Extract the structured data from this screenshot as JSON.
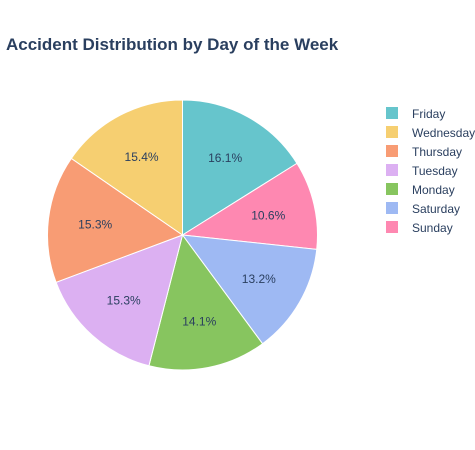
{
  "chart_data": {
    "type": "pie",
    "title": "Accident Distribution by Day of the Week",
    "legend_position": "right",
    "slices": [
      {
        "label": "Friday",
        "value": 16.1,
        "display": "16.1%",
        "color": "#66c5cc"
      },
      {
        "label": "Sunday",
        "value": 10.6,
        "display": "10.6%",
        "color": "#fe88b1"
      },
      {
        "label": "Saturday",
        "value": 13.2,
        "display": "13.2%",
        "color": "#9eb9f3"
      },
      {
        "label": "Monday",
        "value": 14.1,
        "display": "14.1%",
        "color": "#87c55f"
      },
      {
        "label": "Tuesday",
        "value": 15.3,
        "display": "15.3%",
        "color": "#dcb0f2"
      },
      {
        "label": "Thursday",
        "value": 15.3,
        "display": "15.3%",
        "color": "#f89c74"
      },
      {
        "label": "Wednesday",
        "value": 15.4,
        "display": "15.4%",
        "color": "#f6cf71"
      }
    ],
    "legend": [
      {
        "label": "Friday",
        "color": "#66c5cc"
      },
      {
        "label": "Wednesday",
        "color": "#f6cf71"
      },
      {
        "label": "Thursday",
        "color": "#f89c74"
      },
      {
        "label": "Tuesday",
        "color": "#dcb0f2"
      },
      {
        "label": "Monday",
        "color": "#87c55f"
      },
      {
        "label": "Saturday",
        "color": "#9eb9f3"
      },
      {
        "label": "Sunday",
        "color": "#fe88b1"
      }
    ]
  }
}
